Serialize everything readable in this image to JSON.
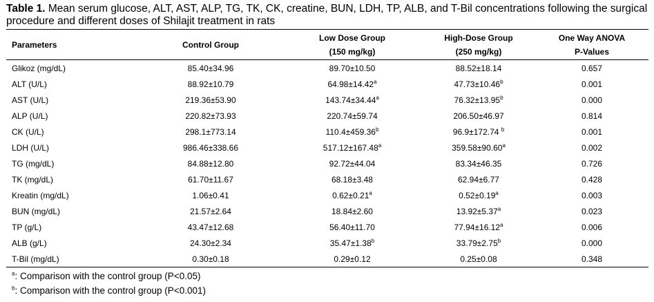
{
  "caption": {
    "label": "Table 1.",
    "text": "Mean serum glucose, ALT, AST, ALP, TG, TK, CK, creatine, BUN, LDH, TP, ALB, and T-Bil concentrations following the surgical procedure and different doses of Shilajit treatment in rats"
  },
  "headers": {
    "parameters": "Parameters",
    "control": "Control Group",
    "low_line1": "Low Dose Group",
    "low_line2": "(150 mg/kg)",
    "high_line1": "High-Dose Group",
    "high_line2": "(250 mg/kg)",
    "anova_line1": "One Way ANOVA",
    "anova_line2": "P-Values"
  },
  "rows": [
    {
      "param": "Glikoz (mg/dL)",
      "control": "85.40±34.96",
      "control_sup": "",
      "low": "89.70±10.50",
      "low_sup": "",
      "high": "88.52±18.14",
      "high_sup": "",
      "p": "0.657"
    },
    {
      "param": "ALT (U/L)",
      "control": "88.92±10.79",
      "control_sup": "",
      "low": "64.98±14.42",
      "low_sup": "a",
      "high": "47.73±10.46",
      "high_sup": "b",
      "p": "0.001"
    },
    {
      "param": "AST (U/L)",
      "control": "219.36±53.90",
      "control_sup": "",
      "low": "143.74±34.44",
      "low_sup": "a",
      "high": "76.32±13.95",
      "high_sup": "b",
      "p": "0.000"
    },
    {
      "param": "ALP (U/L)",
      "control": "220.82±73.93",
      "control_sup": "",
      "low": "220.74±59.74",
      "low_sup": "",
      "high": "206.50±46.97",
      "high_sup": "",
      "p": "0.814"
    },
    {
      "param": "CK (U/L)",
      "control": "298.1±773.14",
      "control_sup": "",
      "low": "110.4±459.36",
      "low_sup": "b",
      "high": "96.9±172.74 ",
      "high_sup": "b",
      "p": "0.001"
    },
    {
      "param": "LDH (U/L)",
      "control": "986.46±338.66",
      "control_sup": "",
      "low": "517.12±167.48",
      "low_sup": "a",
      "high": "359.58±90.60",
      "high_sup": "a",
      "p": "0.002"
    },
    {
      "param": "TG (mg/dL)",
      "control": "84.88±12.80",
      "control_sup": "",
      "low": "92.72±44.04",
      "low_sup": "",
      "high": "83.34±46.35",
      "high_sup": "",
      "p": "0.726"
    },
    {
      "param": "TK (mg/dL)",
      "control": "61.70±11.67",
      "control_sup": "",
      "low": "68.18±3.48",
      "low_sup": "",
      "high": "62.94±6.77",
      "high_sup": "",
      "p": "0.428"
    },
    {
      "param": "Kreatin (mg/dL)",
      "control": "1.06±0.41",
      "control_sup": "",
      "low": "0.62±0.21",
      "low_sup": "a",
      "high": "0.52±0.19",
      "high_sup": "a",
      "p": "0.003"
    },
    {
      "param": "BUN (mg/dL)",
      "control": "21.57±2.64",
      "control_sup": "",
      "low": "18.84±2.60",
      "low_sup": "",
      "high": "13.92±5.37",
      "high_sup": "a",
      "p": "0.023"
    },
    {
      "param": "TP (g/L)",
      "control": "43.47±12.68",
      "control_sup": "",
      "low": "56.40±11.70",
      "low_sup": "",
      "high": "77.94±16.12",
      "high_sup": "a",
      "p": "0.006"
    },
    {
      "param": "ALB (g/L)",
      "control": "24.30±2.34",
      "control_sup": "",
      "low": "35.47±1.38",
      "low_sup": "b",
      "high": "33.79±2.75",
      "high_sup": "b",
      "p": "0.000"
    },
    {
      "param": "T-Bil (mg/dL)",
      "control": "0.30±0.18",
      "control_sup": "",
      "low": "0.29±0.12",
      "low_sup": "",
      "high": "0.25±0.08",
      "high_sup": "",
      "p": "0.348"
    }
  ],
  "footnotes": [
    {
      "mark": "a",
      "text": ": Comparison with the control group (P<0.05)"
    },
    {
      "mark": "b",
      "text": ": Comparison with the control group (P<0.001)"
    }
  ]
}
